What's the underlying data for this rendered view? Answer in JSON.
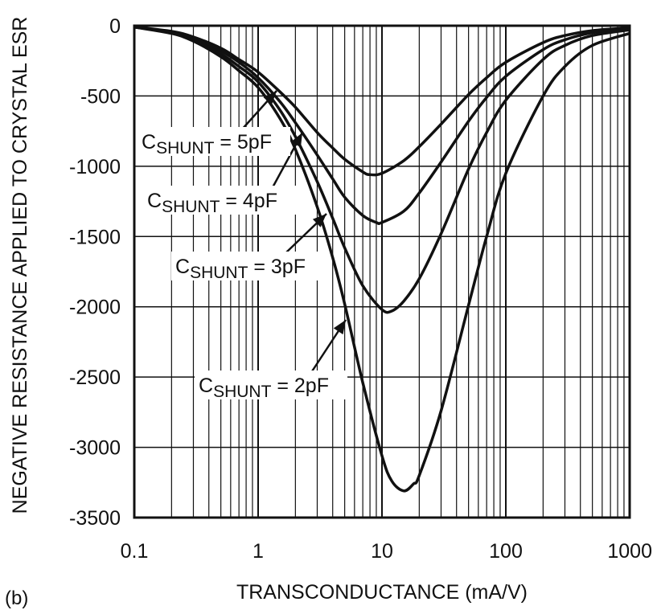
{
  "chart_data": {
    "type": "line",
    "xscale": "log",
    "xlim": [
      0.1,
      1000
    ],
    "ylim": [
      -3500,
      0
    ],
    "grid": true,
    "xlabel": "TRANSCONDUCTANCE (mA/V)",
    "ylabel": "NEGATIVE RESISTANCE APPLIED TO CRYSTAL ESR",
    "panel_label": "(b)",
    "xticks": [
      "0.1",
      "1",
      "10",
      "100",
      "1000"
    ],
    "yticks": [
      "0",
      "-500",
      "-1000",
      "-1500",
      "-2000",
      "-2500",
      "-3000",
      "-3500"
    ],
    "series": [
      {
        "name": "CSHUNT = 5pF",
        "label_main": "C",
        "label_sub": "SHUNT",
        "label_rest": " = 5pF",
        "x": [
          0.1,
          0.2,
          0.3,
          0.5,
          0.7,
          1,
          1.5,
          2,
          3,
          4,
          5,
          7,
          8,
          10,
          15,
          20,
          30,
          50,
          70,
          100,
          200,
          300,
          500,
          1000
        ],
        "y": [
          -10,
          -40,
          -80,
          -160,
          -240,
          -330,
          -470,
          -580,
          -760,
          -870,
          -950,
          -1040,
          -1060,
          -1050,
          -960,
          -860,
          -700,
          -490,
          -370,
          -260,
          -120,
          -70,
          -35,
          -15
        ]
      },
      {
        "name": "CSHUNT = 4pF",
        "label_main": "C",
        "label_sub": "SHUNT",
        "label_rest": " = 4pF",
        "x": [
          0.1,
          0.2,
          0.3,
          0.5,
          0.7,
          1,
          1.5,
          2,
          3,
          4,
          5,
          7,
          9,
          10,
          15,
          20,
          30,
          50,
          70,
          100,
          200,
          300,
          500,
          1000
        ],
        "y": [
          -10,
          -45,
          -90,
          -180,
          -260,
          -370,
          -540,
          -690,
          -920,
          -1090,
          -1220,
          -1350,
          -1400,
          -1400,
          -1320,
          -1190,
          -970,
          -680,
          -510,
          -360,
          -170,
          -100,
          -50,
          -20
        ]
      },
      {
        "name": "CSHUNT = 3pF",
        "label_main": "C",
        "label_sub": "SHUNT",
        "label_rest": " = 3pF",
        "x": [
          0.1,
          0.2,
          0.3,
          0.5,
          0.7,
          1,
          1.5,
          2,
          3,
          4,
          5,
          7,
          10,
          12,
          15,
          20,
          30,
          50,
          70,
          100,
          200,
          300,
          500,
          1000
        ],
        "y": [
          -10,
          -50,
          -100,
          -200,
          -290,
          -400,
          -600,
          -790,
          -1110,
          -1370,
          -1580,
          -1850,
          -2020,
          -2030,
          -1960,
          -1800,
          -1480,
          -1020,
          -760,
          -530,
          -240,
          -140,
          -70,
          -30
        ]
      },
      {
        "name": "CSHUNT = 2pF",
        "label_main": "C",
        "label_sub": "SHUNT",
        "label_rest": " = 2pF",
        "x": [
          0.1,
          0.2,
          0.3,
          0.5,
          0.7,
          1,
          1.5,
          2,
          3,
          4,
          5,
          7,
          10,
          12,
          15,
          18,
          20,
          30,
          50,
          70,
          100,
          200,
          300,
          500,
          1000
        ],
        "y": [
          -10,
          -55,
          -110,
          -220,
          -320,
          -440,
          -660,
          -880,
          -1290,
          -1650,
          -1980,
          -2540,
          -3060,
          -3240,
          -3310,
          -3260,
          -3200,
          -2740,
          -1990,
          -1500,
          -1050,
          -500,
          -290,
          -140,
          -55
        ]
      }
    ]
  }
}
